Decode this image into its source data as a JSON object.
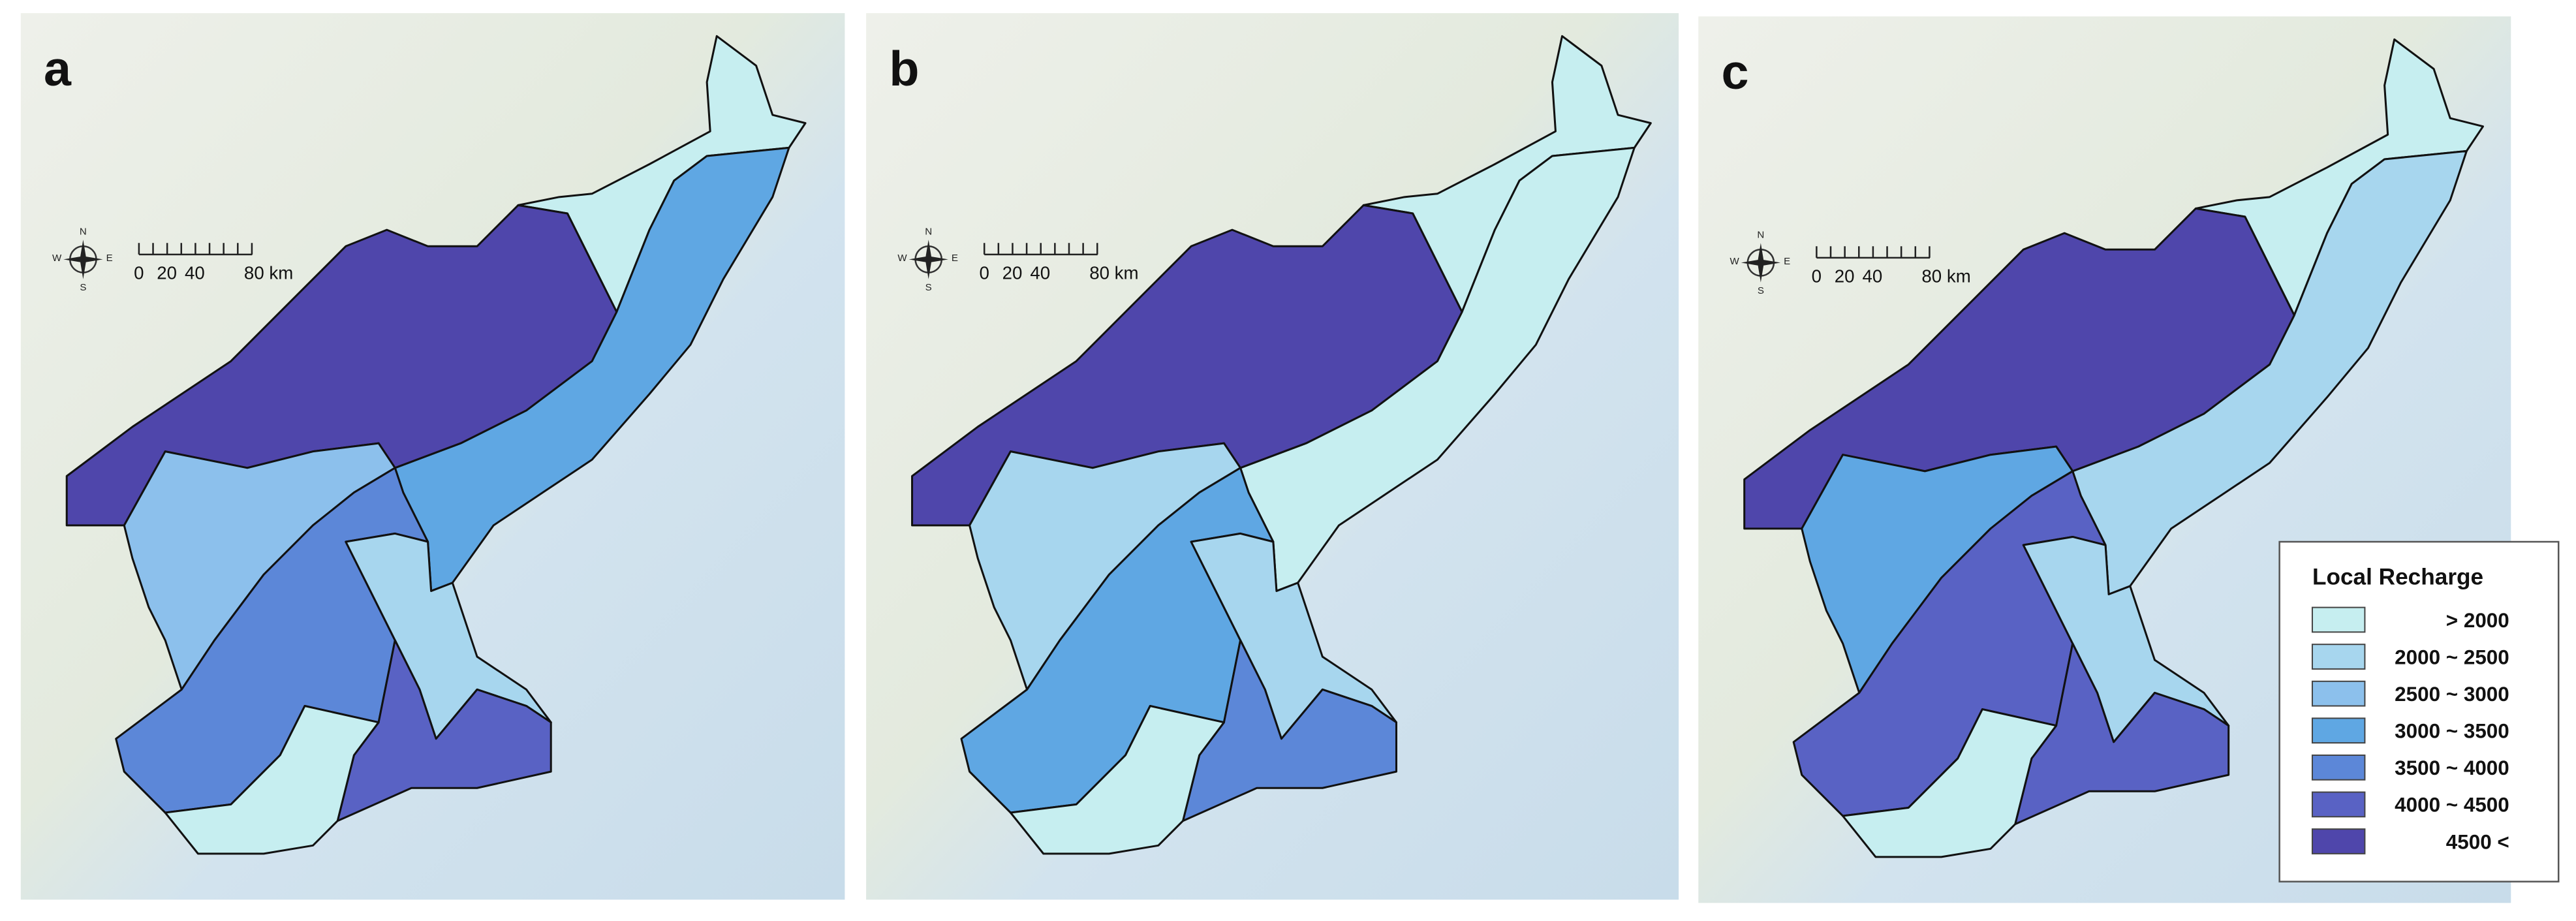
{
  "panels": [
    {
      "label": "a",
      "region_colors": [
        "#c6eef0",
        "#5fa7e3",
        "#4f46ab",
        "#8cc0ec",
        "#5c87d8",
        "#a7d6ee",
        "#5962c4",
        "#c6eef0"
      ]
    },
    {
      "label": "b",
      "region_colors": [
        "#c6eef0",
        "#c6eef0",
        "#4f46ab",
        "#a7d6ee",
        "#5fa7e3",
        "#a7d6ee",
        "#5c87d8",
        "#c6eef0"
      ]
    },
    {
      "label": "c",
      "region_colors": [
        "#c6eef0",
        "#a7d6ee",
        "#4f46ab",
        "#5fa7e3",
        "#5962c4",
        "#a7d6ee",
        "#5962c4",
        "#c6eef0"
      ]
    }
  ],
  "compass": [
    "N",
    "E",
    "S",
    "W"
  ],
  "scale_bar": [
    "0",
    "20",
    "40",
    "80 km"
  ],
  "legend": {
    "title": "Local Recharge",
    "items": [
      {
        "label": "> 2000",
        "color": "#c6eef0"
      },
      {
        "label": "2000 ~ 2500",
        "color": "#a7d6ee"
      },
      {
        "label": "2500 ~ 3000",
        "color": "#8cc0ec"
      },
      {
        "label": "3000 ~ 3500",
        "color": "#5fa7e3"
      },
      {
        "label": "3500 ~ 4000",
        "color": "#5c87d8"
      },
      {
        "label": "4000 ~ 4500",
        "color": "#5962c4"
      },
      {
        "label": "4500 <",
        "color": "#4f46ab"
      }
    ]
  }
}
